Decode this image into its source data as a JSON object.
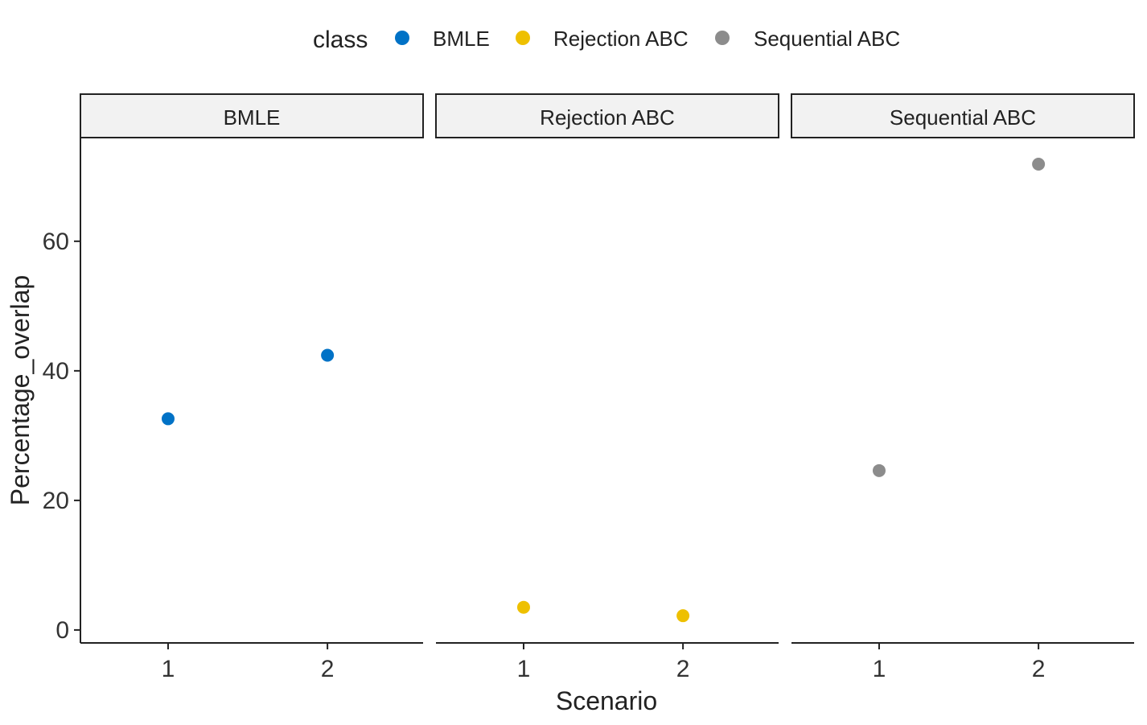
{
  "chart_data": {
    "type": "scatter",
    "facet_by": "class",
    "xlabel": "Scenario",
    "ylabel": "Percentage_overlap",
    "ylim": [
      -2,
      76
    ],
    "yticks": [
      0,
      20,
      40,
      60
    ],
    "xticks": [
      1,
      2
    ],
    "xlim": [
      0.45,
      2.6
    ],
    "grid": false,
    "legend": {
      "title": "class",
      "position": "top",
      "entries": [
        {
          "label": "BMLE",
          "color": "#0072C6"
        },
        {
          "label": "Rejection ABC",
          "color": "#EEC000"
        },
        {
          "label": "Sequential ABC",
          "color": "#8C8C8C"
        }
      ]
    },
    "panels": [
      {
        "strip": "BMLE",
        "color": "#0072C6",
        "points": [
          {
            "x": 1,
            "y": 32.6
          },
          {
            "x": 2,
            "y": 42.4
          }
        ]
      },
      {
        "strip": "Rejection ABC",
        "color": "#EEC000",
        "points": [
          {
            "x": 1,
            "y": 3.5
          },
          {
            "x": 2,
            "y": 2.2
          }
        ]
      },
      {
        "strip": "Sequential ABC",
        "color": "#8C8C8C",
        "points": [
          {
            "x": 1,
            "y": 24.6
          },
          {
            "x": 2,
            "y": 71.9
          }
        ]
      }
    ]
  }
}
